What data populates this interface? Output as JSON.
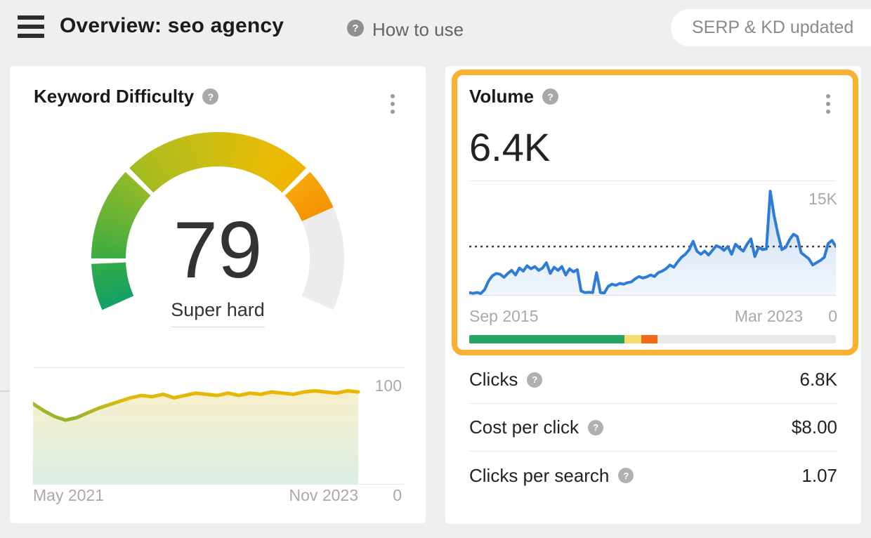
{
  "header": {
    "title": "Overview: seo agency",
    "how_to_use": "How to use",
    "update_badge": "SERP & KD updated"
  },
  "icons": {
    "help_glyph": "?"
  },
  "kd_card": {
    "title": "Keyword Difficulty"
  },
  "volume_card": {
    "title": "Volume",
    "value": "6.4K",
    "metrics": [
      {
        "label": "Clicks",
        "value": "6.8K"
      },
      {
        "label": "Cost per click",
        "value": "$8.00"
      },
      {
        "label": "Clicks per search",
        "value": "1.07"
      }
    ],
    "clicks_bar": {
      "segments": [
        {
          "name": "organic-clicks",
          "color": "#27A564",
          "pct": 42.3
        },
        {
          "name": "paid-clicks",
          "color": "#F6DB70",
          "pct": 4.6
        },
        {
          "name": "paid-and-organic",
          "color": "#F26A17",
          "pct": 4.4
        },
        {
          "name": "no-clicks",
          "color": "#E9E9E9",
          "pct": 48.7
        }
      ]
    }
  },
  "colors": {
    "accent_highlight": "#F8B133",
    "volume_line": "#2F7CD6",
    "reference_line": "#3F3F3F",
    "chart_border": "#E7E7E7",
    "gauge_track": "#ECECEC"
  },
  "chart_data": [
    {
      "id": "kd-gauge",
      "type": "gauge",
      "title": "Keyword Difficulty",
      "value": 79,
      "max": 100,
      "label": "Super hard",
      "segment_boundaries": [
        10,
        30,
        70
      ],
      "start_angle_deg": 204,
      "sweep_deg": 228,
      "track_color": "#ECECEC",
      "color_stops": [
        [
          0,
          "#13A066"
        ],
        [
          8,
          "#2BA84D"
        ],
        [
          12,
          "#43AD3F"
        ],
        [
          28,
          "#8CB82B"
        ],
        [
          32,
          "#A9BC1F"
        ],
        [
          50,
          "#CFBE11"
        ],
        [
          62,
          "#E7BB04"
        ],
        [
          70,
          "#F0B400"
        ],
        [
          71,
          "#F7A60C"
        ],
        [
          79,
          "#F59300"
        ]
      ]
    },
    {
      "id": "kd-trend",
      "type": "area",
      "title": "Keyword Difficulty history",
      "x_start_label": "May 2021",
      "x_end_label": "Nov 2023",
      "y_max_label": "100",
      "y_min_label": "0",
      "ylim": [
        0,
        100
      ],
      "values": [
        69,
        63,
        58,
        55,
        57,
        61,
        65,
        68,
        71,
        74,
        76,
        75,
        77,
        74,
        76,
        78,
        77,
        76,
        78,
        76,
        78,
        77,
        79,
        78,
        77,
        79,
        80,
        79,
        78,
        80,
        79
      ]
    },
    {
      "id": "volume-trend",
      "type": "area",
      "title": "Search volume history",
      "x_start_label": "Sep 2015",
      "x_end_label": "Mar 2023",
      "y_max_label": "15K",
      "y_min_label": "0",
      "ylim": [
        0,
        15000
      ],
      "reference_value": 6400,
      "values": [
        400,
        300,
        420,
        280,
        800,
        1900,
        2600,
        2900,
        2800,
        2400,
        2900,
        3300,
        2700,
        3600,
        3200,
        3900,
        3500,
        3800,
        3300,
        3600,
        4300,
        2900,
        3700,
        3300,
        3800,
        2700,
        3500,
        3100,
        3400,
        600,
        400,
        450,
        400,
        3000,
        400,
        350,
        1200,
        1500,
        1350,
        1600,
        1500,
        1700,
        1800,
        2200,
        2500,
        2300,
        2450,
        2700,
        2500,
        3000,
        3200,
        3500,
        4000,
        3700,
        4400,
        5000,
        5400,
        6000,
        7100,
        5800,
        5400,
        5800,
        5300,
        5900,
        6500,
        6300,
        5900,
        6400,
        5400,
        6700,
        6200,
        5800,
        6700,
        7400,
        5100,
        6300,
        6000,
        6100,
        13600,
        10400,
        8000,
        6000,
        6300,
        7300,
        8000,
        7700,
        5600,
        5200,
        4800,
        4000,
        4300,
        4600,
        5000,
        6800,
        7200,
        6400
      ]
    }
  ]
}
